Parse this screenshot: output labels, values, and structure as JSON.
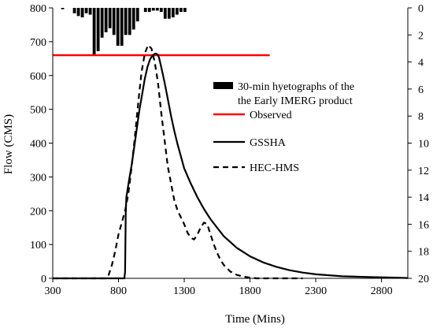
{
  "chart_data": {
    "type": "line",
    "xlabel": "Time (Mins)",
    "ylabel": "Flow (CMS)",
    "xlim": [
      300,
      3000
    ],
    "ylim": [
      0,
      800
    ],
    "y2lim": [
      0,
      20
    ],
    "y2_inverted": true,
    "xticks": [
      "300",
      "800",
      "1300",
      "1800",
      "2300",
      "2800"
    ],
    "yticks": [
      "0",
      "100",
      "200",
      "300",
      "400",
      "500",
      "600",
      "700",
      "800"
    ],
    "y2ticks": [
      "0",
      "2",
      "4",
      "6",
      "8",
      "10",
      "12",
      "14",
      "16",
      "18",
      "20"
    ],
    "legend_position": "right-center",
    "legend": [
      {
        "key": "hyetograph",
        "text_line1": "30-min hyetographs of the",
        "text_line2": "the Early IMERG product",
        "style": "bar"
      },
      {
        "key": "observed",
        "text": "Observed",
        "style": "solid",
        "color": "#ff0000"
      },
      {
        "key": "gssha",
        "text": "GSSHA",
        "style": "solid",
        "color": "#000000"
      },
      {
        "key": "hechms",
        "text": "HEC-HMS",
        "style": "dashed",
        "color": "#000000"
      }
    ],
    "series": [
      {
        "key": "hyetograph",
        "axis": "right",
        "bar_width": 30,
        "x": [
          375,
          405,
          435,
          465,
          495,
          525,
          555,
          585,
          615,
          645,
          675,
          705,
          735,
          765,
          795,
          825,
          855,
          885,
          915,
          945,
          975,
          1005,
          1035,
          1065,
          1095,
          1125,
          1155,
          1185,
          1215,
          1245,
          1275,
          1305
        ],
        "values": [
          0.1,
          0,
          0,
          0.4,
          0.6,
          0.7,
          0.4,
          0.5,
          3.5,
          3.2,
          2.2,
          1.8,
          1.5,
          2.0,
          2.8,
          2.8,
          2.0,
          2.0,
          1.6,
          1.0,
          0,
          0.3,
          0.3,
          0.2,
          0.2,
          0.3,
          0.8,
          0.8,
          0.7,
          0.5,
          0.3,
          0.3
        ]
      },
      {
        "key": "observed",
        "axis": "left",
        "x": [
          300,
          1950
        ],
        "values": [
          660,
          660
        ]
      },
      {
        "key": "gssha",
        "axis": "left",
        "x": [
          300,
          845,
          850,
          855,
          860,
          880,
          900,
          920,
          940,
          960,
          980,
          1000,
          1020,
          1040,
          1060,
          1080,
          1100,
          1110,
          1125,
          1150,
          1175,
          1200,
          1225,
          1250,
          1275,
          1300,
          1350,
          1400,
          1450,
          1500,
          1600,
          1700,
          1800,
          1900,
          2000,
          2100,
          2200,
          2300,
          2400,
          2500,
          2600,
          2700,
          2800,
          2900,
          3000
        ],
        "values": [
          0,
          0,
          20,
          190,
          240,
          290,
          335,
          390,
          445,
          500,
          545,
          590,
          625,
          648,
          660,
          665,
          662,
          650,
          625,
          580,
          530,
          480,
          435,
          395,
          360,
          325,
          280,
          240,
          205,
          175,
          125,
          90,
          65,
          47,
          34,
          24,
          17,
          12,
          9,
          6,
          5,
          4,
          3,
          2,
          1
        ]
      },
      {
        "key": "hechms",
        "axis": "left",
        "x": [
          300,
          700,
          725,
          750,
          775,
          800,
          825,
          850,
          875,
          900,
          925,
          950,
          975,
          1000,
          1025,
          1050,
          1075,
          1100,
          1125,
          1150,
          1175,
          1200,
          1225,
          1250,
          1275,
          1300,
          1325,
          1350,
          1375,
          1400,
          1425,
          1450,
          1475,
          1500,
          1525,
          1550,
          1575,
          1600,
          1650,
          1700,
          1750,
          1800,
          1850,
          1900,
          2000,
          2200
        ],
        "values": [
          0,
          0,
          10,
          40,
          80,
          130,
          165,
          200,
          250,
          330,
          420,
          520,
          610,
          665,
          690,
          680,
          640,
          580,
          490,
          410,
          330,
          280,
          230,
          200,
          180,
          160,
          135,
          120,
          115,
          130,
          150,
          165,
          160,
          130,
          100,
          75,
          55,
          40,
          20,
          10,
          5,
          2,
          0,
          0,
          0,
          0
        ]
      }
    ]
  }
}
